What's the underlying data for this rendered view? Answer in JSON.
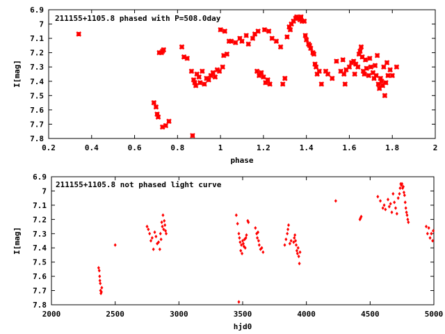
{
  "chart_data": [
    {
      "type": "scatter",
      "title": "211155+1105.8 phased with P=508.0day",
      "xlabel": "phase",
      "ylabel": "I[mag]",
      "xlim": [
        0.2,
        2.0
      ],
      "ylim": [
        6.9,
        7.8
      ],
      "y_inverted": true,
      "x_ticks": [
        "0.2",
        "0.4",
        "0.6",
        "0.8",
        "1",
        "1.2",
        "1.4",
        "1.6",
        "1.8",
        "2"
      ],
      "y_ticks": [
        "6.9",
        "7",
        "7.1",
        "7.2",
        "7.3",
        "7.4",
        "7.5",
        "7.6",
        "7.7",
        "7.8"
      ],
      "grid": false,
      "legend": "none",
      "marker_color": "#ff0000",
      "series": [
        {
          "points": [
            [
              0.34,
              7.07
            ],
            [
              0.69,
              7.55
            ],
            [
              0.7,
              7.58
            ],
            [
              0.705,
              7.63
            ],
            [
              0.71,
              7.65
            ],
            [
              0.715,
              7.2
            ],
            [
              0.725,
              7.2
            ],
            [
              0.73,
              7.19
            ],
            [
              0.735,
              7.18
            ],
            [
              0.73,
              7.72
            ],
            [
              0.745,
              7.71
            ],
            [
              0.76,
              7.68
            ],
            [
              0.82,
              7.16
            ],
            [
              0.83,
              7.23
            ],
            [
              0.845,
              7.24
            ],
            [
              0.865,
              7.33
            ],
            [
              0.87,
              7.78
            ],
            [
              0.875,
              7.39
            ],
            [
              0.88,
              7.41
            ],
            [
              0.885,
              7.43
            ],
            [
              0.89,
              7.35
            ],
            [
              0.9,
              7.37
            ],
            [
              0.905,
              7.41
            ],
            [
              0.915,
              7.33
            ],
            [
              0.925,
              7.42
            ],
            [
              0.935,
              7.38
            ],
            [
              0.945,
              7.39
            ],
            [
              0.955,
              7.36
            ],
            [
              0.965,
              7.34
            ],
            [
              0.975,
              7.37
            ],
            [
              0.985,
              7.32
            ],
            [
              0.995,
              7.33
            ],
            [
              1.0,
              7.04
            ],
            [
              1.01,
              7.3
            ],
            [
              1.015,
              7.22
            ],
            [
              1.02,
              7.05
            ],
            [
              1.03,
              7.21
            ],
            [
              1.04,
              7.12
            ],
            [
              1.05,
              7.12
            ],
            [
              1.07,
              7.13
            ],
            [
              1.09,
              7.1
            ],
            [
              1.1,
              7.12
            ],
            [
              1.12,
              7.08
            ],
            [
              1.13,
              7.14
            ],
            [
              1.15,
              7.1
            ],
            [
              1.16,
              7.07
            ],
            [
              1.17,
              7.33
            ],
            [
              1.175,
              7.05
            ],
            [
              1.18,
              7.36
            ],
            [
              1.19,
              7.34
            ],
            [
              1.2,
              7.37
            ],
            [
              1.205,
              7.04
            ],
            [
              1.21,
              7.41
            ],
            [
              1.22,
              7.39
            ],
            [
              1.225,
              7.05
            ],
            [
              1.23,
              7.42
            ],
            [
              1.24,
              7.1
            ],
            [
              1.26,
              7.12
            ],
            [
              1.28,
              7.16
            ],
            [
              1.29,
              7.42
            ],
            [
              1.3,
              7.38
            ],
            [
              1.31,
              7.09
            ],
            [
              1.32,
              7.02
            ],
            [
              1.325,
              7.04
            ],
            [
              1.33,
              7.0
            ],
            [
              1.34,
              6.98
            ],
            [
              1.35,
              6.96
            ],
            [
              1.355,
              6.95
            ],
            [
              1.36,
              6.96
            ],
            [
              1.37,
              6.97
            ],
            [
              1.375,
              6.95
            ],
            [
              1.38,
              6.98
            ],
            [
              1.39,
              6.98
            ],
            [
              1.395,
              7.08
            ],
            [
              1.4,
              7.11
            ],
            [
              1.41,
              7.14
            ],
            [
              1.415,
              7.15
            ],
            [
              1.42,
              7.17
            ],
            [
              1.43,
              7.2
            ],
            [
              1.435,
              7.21
            ],
            [
              1.44,
              7.28
            ],
            [
              1.445,
              7.3
            ],
            [
              1.45,
              7.35
            ],
            [
              1.46,
              7.33
            ],
            [
              1.47,
              7.42
            ],
            [
              1.49,
              7.33
            ],
            [
              1.5,
              7.35
            ],
            [
              1.52,
              7.38
            ],
            [
              1.54,
              7.26
            ],
            [
              1.56,
              7.33
            ],
            [
              1.57,
              7.25
            ],
            [
              1.575,
              7.35
            ],
            [
              1.58,
              7.42
            ],
            [
              1.585,
              7.32
            ],
            [
              1.6,
              7.3
            ],
            [
              1.61,
              7.27
            ],
            [
              1.62,
              7.26
            ],
            [
              1.625,
              7.35
            ],
            [
              1.63,
              7.28
            ],
            [
              1.64,
              7.3
            ],
            [
              1.645,
              7.21
            ],
            [
              1.65,
              7.19
            ],
            [
              1.655,
              7.16
            ],
            [
              1.66,
              7.23
            ],
            [
              1.665,
              7.33
            ],
            [
              1.67,
              7.35
            ],
            [
              1.675,
              7.25
            ],
            [
              1.68,
              7.31
            ],
            [
              1.69,
              7.36
            ],
            [
              1.695,
              7.24
            ],
            [
              1.7,
              7.3
            ],
            [
              1.71,
              7.34
            ],
            [
              1.715,
              7.38
            ],
            [
              1.72,
              7.29
            ],
            [
              1.725,
              7.36
            ],
            [
              1.73,
              7.22
            ],
            [
              1.735,
              7.42
            ],
            [
              1.74,
              7.45
            ],
            [
              1.745,
              7.38
            ],
            [
              1.75,
              7.4
            ],
            [
              1.755,
              7.43
            ],
            [
              1.76,
              7.3
            ],
            [
              1.765,
              7.5
            ],
            [
              1.77,
              7.41
            ],
            [
              1.775,
              7.27
            ],
            [
              1.78,
              7.36
            ],
            [
              1.79,
              7.32
            ],
            [
              1.8,
              7.36
            ],
            [
              1.82,
              7.3
            ]
          ]
        }
      ]
    },
    {
      "type": "scatter",
      "title": "211155+1105.8 not phased light curve",
      "xlabel": "hjd0",
      "ylabel": "I[mag]",
      "xlim": [
        2000,
        5000
      ],
      "ylim": [
        6.9,
        7.8
      ],
      "y_inverted": true,
      "x_ticks": [
        "2000",
        "2500",
        "3000",
        "3500",
        "4000",
        "4500",
        "5000"
      ],
      "y_ticks": [
        "6.9",
        "7",
        "7.1",
        "7.2",
        "7.3",
        "7.4",
        "7.5",
        "7.6",
        "7.7",
        "7.8"
      ],
      "grid": false,
      "legend": "none",
      "marker_color": "#ff0000",
      "series": [
        {
          "points": [
            [
              2370,
              7.54
            ],
            [
              2375,
              7.56
            ],
            [
              2378,
              7.6
            ],
            [
              2380,
              7.63
            ],
            [
              2383,
              7.65
            ],
            [
              2385,
              7.7
            ],
            [
              2388,
              7.72
            ],
            [
              2392,
              7.71
            ],
            [
              2395,
              7.68
            ],
            [
              2500,
              7.38
            ],
            [
              2750,
              7.25
            ],
            [
              2760,
              7.27
            ],
            [
              2770,
              7.3
            ],
            [
              2780,
              7.35
            ],
            [
              2790,
              7.33
            ],
            [
              2800,
              7.41
            ],
            [
              2810,
              7.29
            ],
            [
              2820,
              7.32
            ],
            [
              2830,
              7.37
            ],
            [
              2840,
              7.36
            ],
            [
              2850,
              7.41
            ],
            [
              2855,
              7.3
            ],
            [
              2860,
              7.34
            ],
            [
              2865,
              7.22
            ],
            [
              2870,
              7.25
            ],
            [
              2875,
              7.17
            ],
            [
              2880,
              7.27
            ],
            [
              2885,
              7.21
            ],
            [
              2890,
              7.24
            ],
            [
              2895,
              7.28
            ],
            [
              2900,
              7.3
            ],
            [
              3450,
              7.17
            ],
            [
              3460,
              7.23
            ],
            [
              3470,
              7.3
            ],
            [
              3475,
              7.33
            ],
            [
              3480,
              7.36
            ],
            [
              3485,
              7.42
            ],
            [
              3490,
              7.38
            ],
            [
              3495,
              7.44
            ],
            [
              3500,
              7.35
            ],
            [
              3505,
              7.37
            ],
            [
              3510,
              7.39
            ],
            [
              3515,
              7.34
            ],
            [
              3520,
              7.4
            ],
            [
              3525,
              7.33
            ],
            [
              3530,
              7.31
            ],
            [
              3540,
              7.21
            ],
            [
              3545,
              7.22
            ],
            [
              3470,
              7.78
            ],
            [
              3600,
              7.26
            ],
            [
              3610,
              7.3
            ],
            [
              3615,
              7.33
            ],
            [
              3620,
              7.29
            ],
            [
              3625,
              7.35
            ],
            [
              3630,
              7.38
            ],
            [
              3640,
              7.41
            ],
            [
              3650,
              7.4
            ],
            [
              3660,
              7.43
            ],
            [
              3830,
              7.38
            ],
            [
              3840,
              7.34
            ],
            [
              3850,
              7.3
            ],
            [
              3855,
              7.27
            ],
            [
              3860,
              7.24
            ],
            [
              3870,
              7.37
            ],
            [
              3880,
              7.35
            ],
            [
              3900,
              7.36
            ],
            [
              3905,
              7.33
            ],
            [
              3910,
              7.31
            ],
            [
              3915,
              7.35
            ],
            [
              3920,
              7.38
            ],
            [
              3925,
              7.42
            ],
            [
              3930,
              7.44
            ],
            [
              3935,
              7.4
            ],
            [
              3940,
              7.46
            ],
            [
              3945,
              7.51
            ],
            [
              3950,
              7.43
            ],
            [
              4230,
              7.07
            ],
            [
              4420,
              7.2
            ],
            [
              4425,
              7.19
            ],
            [
              4430,
              7.18
            ],
            [
              4560,
              7.04
            ],
            [
              4580,
              7.07
            ],
            [
              4600,
              7.12
            ],
            [
              4610,
              7.1
            ],
            [
              4620,
              7.13
            ],
            [
              4640,
              7.06
            ],
            [
              4650,
              7.11
            ],
            [
              4660,
              7.09
            ],
            [
              4670,
              7.15
            ],
            [
              4680,
              7.02
            ],
            [
              4690,
              7.08
            ],
            [
              4700,
              7.12
            ],
            [
              4710,
              7.16
            ],
            [
              4720,
              7.05
            ],
            [
              4730,
              7.02
            ],
            [
              4735,
              6.98
            ],
            [
              4740,
              6.95
            ],
            [
              4745,
              6.96
            ],
            [
              4750,
              6.95
            ],
            [
              4755,
              6.98
            ],
            [
              4760,
              6.97
            ],
            [
              4765,
              7.01
            ],
            [
              4770,
              7.03
            ],
            [
              4775,
              7.08
            ],
            [
              4780,
              7.12
            ],
            [
              4785,
              7.15
            ],
            [
              4790,
              7.17
            ],
            [
              4795,
              7.2
            ],
            [
              4800,
              7.22
            ],
            [
              4940,
              7.25
            ],
            [
              4950,
              7.3
            ],
            [
              4960,
              7.26
            ],
            [
              4970,
              7.33
            ],
            [
              4980,
              7.3
            ],
            [
              4990,
              7.35
            ],
            [
              4995,
              7.28
            ]
          ]
        }
      ]
    }
  ]
}
